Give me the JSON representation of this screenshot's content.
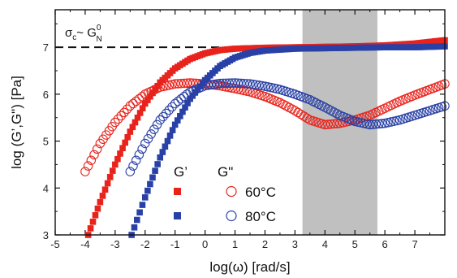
{
  "chart_data": {
    "type": "scatter",
    "xlabel": "log(ω) [rad/s]",
    "ylabel": "log (G’,G\") [Pa]",
    "xlim": [
      -5,
      8
    ],
    "ylim": [
      3,
      7.8
    ],
    "x_ticks": [
      "-5",
      "-4",
      "-3",
      "-2",
      "-1",
      "0",
      "1",
      "2",
      "3",
      "4",
      "5",
      "6",
      "7"
    ],
    "y_ticks": [
      "3",
      "4",
      "5",
      "6",
      "7"
    ],
    "shaded_region": [
      3.25,
      5.75
    ],
    "shaded_color": "#c0c0c0",
    "reference_line": {
      "y": 7.0,
      "style": "dashed"
    },
    "annotation": {
      "base": "σ",
      "sub1": "c",
      "mid": "~ G",
      "sup": "0",
      "sub2": "N"
    },
    "legend": {
      "header_filled": "G’",
      "header_open": "G\"",
      "rows": [
        {
          "label": "60°C",
          "color": "#e8231c"
        },
        {
          "label": "80°C",
          "color": "#2941a6"
        }
      ]
    },
    "series": [
      {
        "marker": "square",
        "filled": true,
        "color": "#e8231c",
        "points": [
          [
            -3.9,
            3.0
          ],
          [
            -3.5,
            3.7
          ],
          [
            -3.0,
            4.5
          ],
          [
            -2.5,
            5.2
          ],
          [
            -2.0,
            5.8
          ],
          [
            -1.5,
            6.25
          ],
          [
            -1.0,
            6.55
          ],
          [
            -0.5,
            6.75
          ],
          [
            0.0,
            6.87
          ],
          [
            0.5,
            6.94
          ],
          [
            1.0,
            6.97
          ],
          [
            2.0,
            6.99
          ],
          [
            3.0,
            7.0
          ],
          [
            4.0,
            7.01
          ],
          [
            5.0,
            7.02
          ],
          [
            6.0,
            7.04
          ],
          [
            7.0,
            7.08
          ],
          [
            8.0,
            7.15
          ]
        ]
      },
      {
        "marker": "circle",
        "filled": false,
        "color": "#e8231c",
        "points": [
          [
            -4.0,
            4.35
          ],
          [
            -3.5,
            4.95
          ],
          [
            -3.0,
            5.4
          ],
          [
            -2.5,
            5.75
          ],
          [
            -2.0,
            6.0
          ],
          [
            -1.5,
            6.15
          ],
          [
            -1.0,
            6.22
          ],
          [
            -0.5,
            6.24
          ],
          [
            0.0,
            6.22
          ],
          [
            0.5,
            6.18
          ],
          [
            1.0,
            6.12
          ],
          [
            1.5,
            6.05
          ],
          [
            2.0,
            5.95
          ],
          [
            2.5,
            5.82
          ],
          [
            3.0,
            5.65
          ],
          [
            3.5,
            5.45
          ],
          [
            4.0,
            5.35
          ],
          [
            4.5,
            5.38
          ],
          [
            5.0,
            5.45
          ],
          [
            5.5,
            5.55
          ],
          [
            6.0,
            5.7
          ],
          [
            6.5,
            5.85
          ],
          [
            7.0,
            5.98
          ],
          [
            7.5,
            6.1
          ],
          [
            8.0,
            6.22
          ]
        ]
      },
      {
        "marker": "square",
        "filled": true,
        "color": "#2941a6",
        "points": [
          [
            -2.45,
            3.0
          ],
          [
            -2.0,
            3.8
          ],
          [
            -1.5,
            4.65
          ],
          [
            -1.0,
            5.35
          ],
          [
            -0.5,
            5.9
          ],
          [
            0.0,
            6.3
          ],
          [
            0.5,
            6.6
          ],
          [
            1.0,
            6.78
          ],
          [
            1.5,
            6.88
          ],
          [
            2.0,
            6.93
          ],
          [
            3.0,
            6.97
          ],
          [
            4.0,
            6.98
          ],
          [
            5.0,
            6.99
          ],
          [
            6.0,
            7.0
          ],
          [
            7.0,
            7.0
          ],
          [
            8.0,
            7.02
          ]
        ]
      },
      {
        "marker": "circle",
        "filled": false,
        "color": "#2941a6",
        "points": [
          [
            -2.5,
            4.35
          ],
          [
            -2.0,
            4.95
          ],
          [
            -1.5,
            5.45
          ],
          [
            -1.0,
            5.8
          ],
          [
            -0.5,
            6.05
          ],
          [
            0.0,
            6.18
          ],
          [
            0.5,
            6.23
          ],
          [
            1.0,
            6.24
          ],
          [
            1.5,
            6.22
          ],
          [
            2.0,
            6.17
          ],
          [
            2.5,
            6.1
          ],
          [
            3.0,
            6.0
          ],
          [
            3.5,
            5.88
          ],
          [
            4.0,
            5.72
          ],
          [
            4.5,
            5.55
          ],
          [
            5.0,
            5.42
          ],
          [
            5.5,
            5.35
          ],
          [
            6.0,
            5.38
          ],
          [
            6.5,
            5.45
          ],
          [
            7.0,
            5.55
          ],
          [
            7.5,
            5.65
          ],
          [
            8.0,
            5.75
          ]
        ]
      }
    ]
  }
}
